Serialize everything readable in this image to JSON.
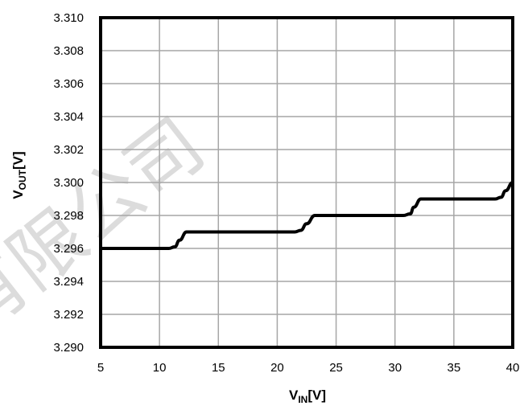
{
  "watermark": "有限公司",
  "chart_data": {
    "type": "line",
    "title": "",
    "xlabel": {
      "main": "V",
      "sub": "IN",
      "unit": "[V]"
    },
    "ylabel": {
      "main": "V",
      "sub": "OUT",
      "unit": "[V]"
    },
    "xlim": [
      5,
      40
    ],
    "ylim": [
      3.29,
      3.31
    ],
    "x_ticks": [
      "5",
      "10",
      "15",
      "20",
      "25",
      "30",
      "35",
      "40"
    ],
    "y_ticks": [
      "3.290",
      "3.292",
      "3.294",
      "3.296",
      "3.298",
      "3.300",
      "3.302",
      "3.304",
      "3.306",
      "3.308",
      "3.310"
    ],
    "grid": true,
    "legend": "none",
    "colors": {
      "line": "#000000",
      "grid": "#a6a6a6",
      "frame": "#000000"
    },
    "series": [
      {
        "x": [
          5,
          10.8,
          11.3,
          11.7,
          12.3,
          21.5,
          22.0,
          22.5,
          23.2,
          30.7,
          31.3,
          31.6,
          32.2,
          38.5,
          39.0,
          39.4,
          40
        ],
        "values": [
          3.296,
          3.296,
          3.2961,
          3.2965,
          3.297,
          3.297,
          3.2971,
          3.2975,
          3.298,
          3.298,
          3.2981,
          3.2985,
          3.299,
          3.299,
          3.2991,
          3.2995,
          3.3
        ]
      }
    ]
  }
}
